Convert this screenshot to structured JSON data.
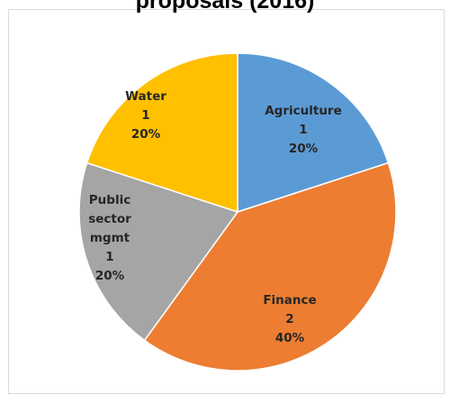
{
  "chart_data": {
    "type": "pie",
    "title": "proposals (2016)",
    "categories": [
      "Agriculture",
      "Finance",
      "Public sector mgmt",
      "Water"
    ],
    "values": [
      1,
      2,
      1,
      1
    ],
    "percent_labels": [
      "20%",
      "40%",
      "20%",
      "20%"
    ],
    "label_lines": [
      [
        "Agriculture",
        "1",
        "20%"
      ],
      [
        "Finance",
        "2",
        "40%"
      ],
      [
        "Public",
        "sector",
        "mgmt",
        "1",
        "20%"
      ],
      [
        "Water",
        "1",
        "20%"
      ]
    ],
    "colors": [
      "#5b9bd5",
      "#ed7d31",
      "#a5a5a5",
      "#ffc000"
    ],
    "legend": "none",
    "start_angle_deg": 0,
    "direction": "clockwise"
  }
}
